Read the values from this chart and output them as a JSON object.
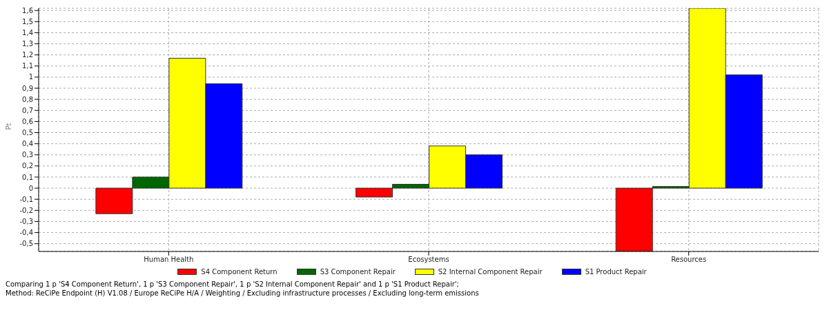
{
  "chart_data": {
    "type": "bar",
    "ylabel": "Pt",
    "categories": [
      "Human Health",
      "Ecosystems",
      "Resources"
    ],
    "series": [
      {
        "name": "S4 Component Return",
        "color": "#ff0000",
        "values": [
          -0.23,
          -0.08,
          -0.57
        ]
      },
      {
        "name": "S3 Component Repair",
        "color": "#006600",
        "values": [
          0.1,
          0.035,
          0.015
        ]
      },
      {
        "name": "S2 Internal Component Repair",
        "color": "#ffff00",
        "values": [
          1.17,
          0.38,
          1.62
        ]
      },
      {
        "name": "S1 Product Repair",
        "color": "#0000ff",
        "values": [
          0.94,
          0.3,
          1.02
        ]
      }
    ],
    "ylim": [
      -0.57,
      1.62
    ],
    "yticks": [
      {
        "value": -0.5,
        "label": "-0,5"
      },
      {
        "value": -0.4,
        "label": "-0,4"
      },
      {
        "value": -0.3,
        "label": "-0,3"
      },
      {
        "value": -0.2,
        "label": "-0,2"
      },
      {
        "value": -0.1,
        "label": "-0,1"
      },
      0,
      {
        "value": 0.1,
        "label": "0,1"
      },
      {
        "value": 0.2,
        "label": "0,2"
      },
      {
        "value": 0.3,
        "label": "0,3"
      },
      {
        "value": 0.4,
        "label": "0,4"
      },
      {
        "value": 0.5,
        "label": "0,5"
      },
      {
        "value": 0.6,
        "label": "0,6"
      },
      {
        "value": 0.7,
        "label": "0,7"
      },
      {
        "value": 0.8,
        "label": "0,8"
      },
      {
        "value": 0.9,
        "label": "0,9"
      },
      1,
      {
        "value": 1.1,
        "label": "1,1"
      },
      {
        "value": 1.2,
        "label": "1,2"
      },
      {
        "value": 1.3,
        "label": "1,3"
      },
      {
        "value": 1.4,
        "label": "1,4"
      },
      {
        "value": 1.5,
        "label": "1,5"
      },
      {
        "value": 1.6,
        "label": "1,6"
      }
    ],
    "grid": true,
    "legend": "bottom",
    "annotations": [
      "Comparing 1 p 'S4 Component Return', 1 p 'S3 Component Repair', 1 p 'S2 Internal Component Repair' and 1 p 'S1 Product Repair';",
      "Method: ReCiPe Endpoint (H) V1.08 / Europe ReCiPe H/A / Weighting / Excluding infrastructure processes / Excluding long-term emissions"
    ]
  }
}
